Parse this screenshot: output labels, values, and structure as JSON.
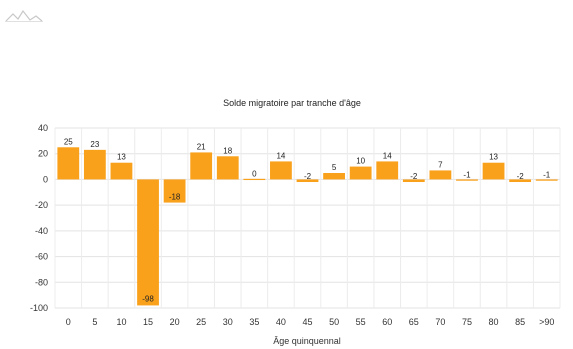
{
  "chart_data": {
    "type": "bar",
    "title": "Solde migratoire par tranche d'âge",
    "xlabel": "Âge quinquennal",
    "ylabel": "",
    "ylim": [
      -100,
      40
    ],
    "yticks": [
      40,
      20,
      0,
      -20,
      -40,
      -60,
      -80,
      -100
    ],
    "grid": true,
    "legend": "none",
    "bar_color": "#F9A11B",
    "categories": [
      "0",
      "5",
      "10",
      "15",
      "20",
      "25",
      "30",
      "35",
      "40",
      "45",
      "50",
      "55",
      "60",
      "65",
      "70",
      "75",
      "80",
      "85",
      ">90"
    ],
    "values": [
      25,
      23,
      13,
      -98,
      -18,
      21,
      18,
      0,
      14,
      -2,
      5,
      10,
      14,
      -2,
      7,
      -1,
      13,
      -2,
      -1
    ],
    "data_labels": [
      "25",
      "23",
      "13",
      "-98",
      "-18",
      "21",
      "18",
      "0",
      "14",
      "-2",
      "5",
      "10",
      "14",
      "-2",
      "7",
      "-1",
      "13",
      "-2",
      "-1"
    ]
  }
}
